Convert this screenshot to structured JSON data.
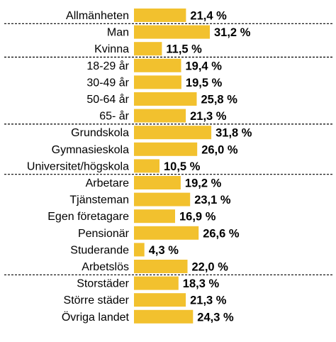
{
  "chart_data": {
    "type": "bar",
    "orientation": "horizontal",
    "categories": [
      "Allmänheten",
      "Man",
      "Kvinna",
      "18-29 år",
      "30-49 år",
      "50-64 år",
      "65- år",
      "Grundskola",
      "Gymnasieskola",
      "Universitet/högskola",
      "Arbetare",
      "Tjänsteman",
      "Egen företagare",
      "Pensionär",
      "Studerande",
      "Arbetslös",
      "Storstäder",
      "Större städer",
      "Övriga landet"
    ],
    "values": [
      21.4,
      31.2,
      11.5,
      19.4,
      19.5,
      25.8,
      21.3,
      31.8,
      26.0,
      10.5,
      19.2,
      23.1,
      16.9,
      26.6,
      4.3,
      22.0,
      18.3,
      21.3,
      24.3
    ],
    "data_labels": [
      "21,4 %",
      "31,2 %",
      "11,5 %",
      "19,4 %",
      "19,5 %",
      "25,8 %",
      "21,3 %",
      "31,8 %",
      "26,0 %",
      "10,5 %",
      "19,2 %",
      "23,1 %",
      "16,9 %",
      "26,6 %",
      "4,3 %",
      "22,0 %",
      "18,3 %",
      "21,3 %",
      "24,3 %"
    ],
    "groups": [
      [
        "Allmänheten"
      ],
      [
        "Man",
        "Kvinna"
      ],
      [
        "18-29 år",
        "30-49 år",
        "50-64 år",
        "65- år"
      ],
      [
        "Grundskola",
        "Gymnasieskola",
        "Universitet/högskola"
      ],
      [
        "Arbetare",
        "Tjänsteman",
        "Egen företagare",
        "Pensionär",
        "Studerande",
        "Arbetslös"
      ],
      [
        "Storstäder",
        "Större städer",
        "Övriga landet"
      ]
    ],
    "title": "",
    "xlabel": "",
    "ylabel": "",
    "xlim": [
      0,
      40
    ],
    "grid": false,
    "legend": "none",
    "bar_color": "#F2C12E",
    "separator_color": "#000000"
  }
}
